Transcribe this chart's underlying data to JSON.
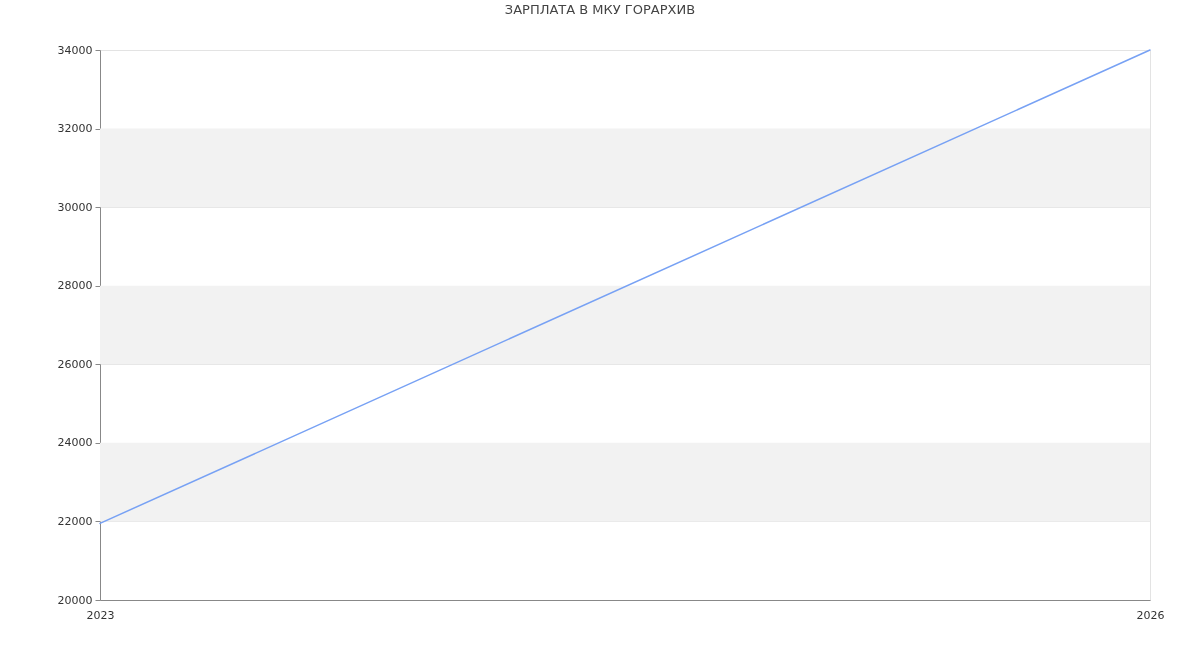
{
  "chart_data": {
    "type": "line",
    "title": "ЗАРПЛАТА В МКУ ГОРАРХИВ",
    "x": [
      "2023",
      "2026"
    ],
    "values": [
      21950,
      34000
    ],
    "color": "#77a1f4",
    "xlim": [
      "2023",
      "2026"
    ],
    "xticks": [
      "2023",
      "2026"
    ],
    "ylim": [
      20000,
      34000
    ],
    "yticks": [
      20000,
      22000,
      24000,
      26000,
      28000,
      30000,
      32000,
      34000
    ],
    "bands": [
      {
        "axis": "y",
        "from": 22000,
        "to": 24000,
        "color": "#f2f2f2"
      },
      {
        "axis": "y",
        "from": 26000,
        "to": 28000,
        "color": "#f2f2f2"
      },
      {
        "axis": "y",
        "from": 30000,
        "to": 32000,
        "color": "#f2f2f2"
      }
    ],
    "grid": true
  }
}
